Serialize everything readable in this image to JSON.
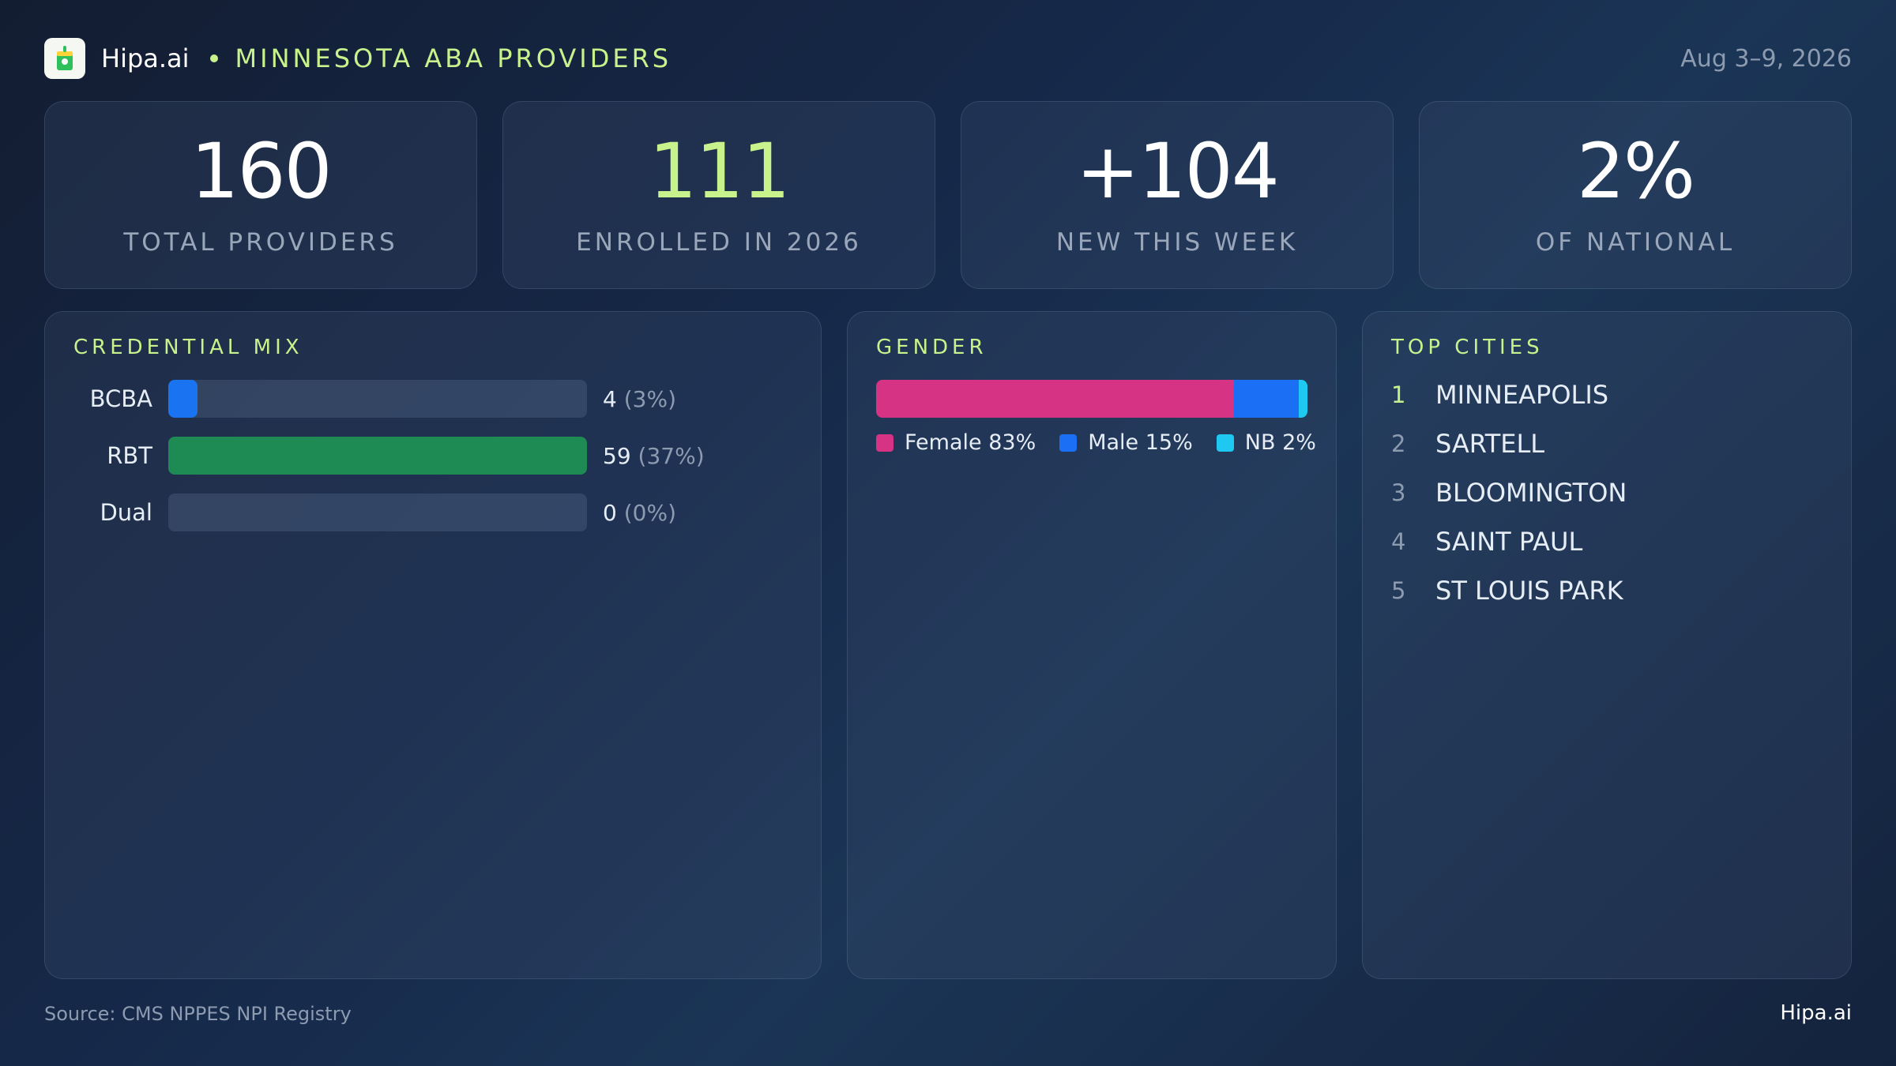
{
  "header": {
    "brand": "Hipa.ai",
    "region": "MINNESOTA ABA PROVIDERS",
    "date_range": "Aug 3–9, 2026"
  },
  "stats": [
    {
      "value": "160",
      "label": "TOTAL PROVIDERS"
    },
    {
      "value": "111",
      "label": "ENROLLED IN 2026"
    },
    {
      "value": "+104",
      "label": "NEW THIS WEEK"
    },
    {
      "value": "2%",
      "label": "OF NATIONAL"
    }
  ],
  "credential_mix": {
    "title": "CREDENTIAL MIX",
    "rows": [
      {
        "label": "BCBA",
        "count": "4",
        "pct": "(3%)",
        "fill": 0.07,
        "color": "#1a73f0"
      },
      {
        "label": "RBT",
        "count": "59",
        "pct": "(37%)",
        "fill": 1.0,
        "color": "#1e8a54"
      },
      {
        "label": "Dual",
        "count": "0",
        "pct": "(0%)",
        "fill": 0.0,
        "color": "#1a73f0"
      }
    ]
  },
  "gender": {
    "title": "GENDER",
    "segments": [
      {
        "label": "Female 83%",
        "value": 83,
        "color": "#d63384"
      },
      {
        "label": "Male 15%",
        "value": 15,
        "color": "#1a6ff5"
      },
      {
        "label": "NB 2%",
        "value": 2,
        "color": "#1fc8f0"
      }
    ]
  },
  "top_cities": {
    "title": "TOP CITIES",
    "items": [
      {
        "rank": "1",
        "name": "MINNEAPOLIS"
      },
      {
        "rank": "2",
        "name": "SARTELL"
      },
      {
        "rank": "3",
        "name": "BLOOMINGTON"
      },
      {
        "rank": "4",
        "name": "SAINT PAUL"
      },
      {
        "rank": "5",
        "name": "ST LOUIS PARK"
      }
    ]
  },
  "footer": {
    "source": "Source: CMS NPPES NPI Registry",
    "brand": "Hipa.ai"
  },
  "colors": {
    "accent": "#c8f28c"
  }
}
